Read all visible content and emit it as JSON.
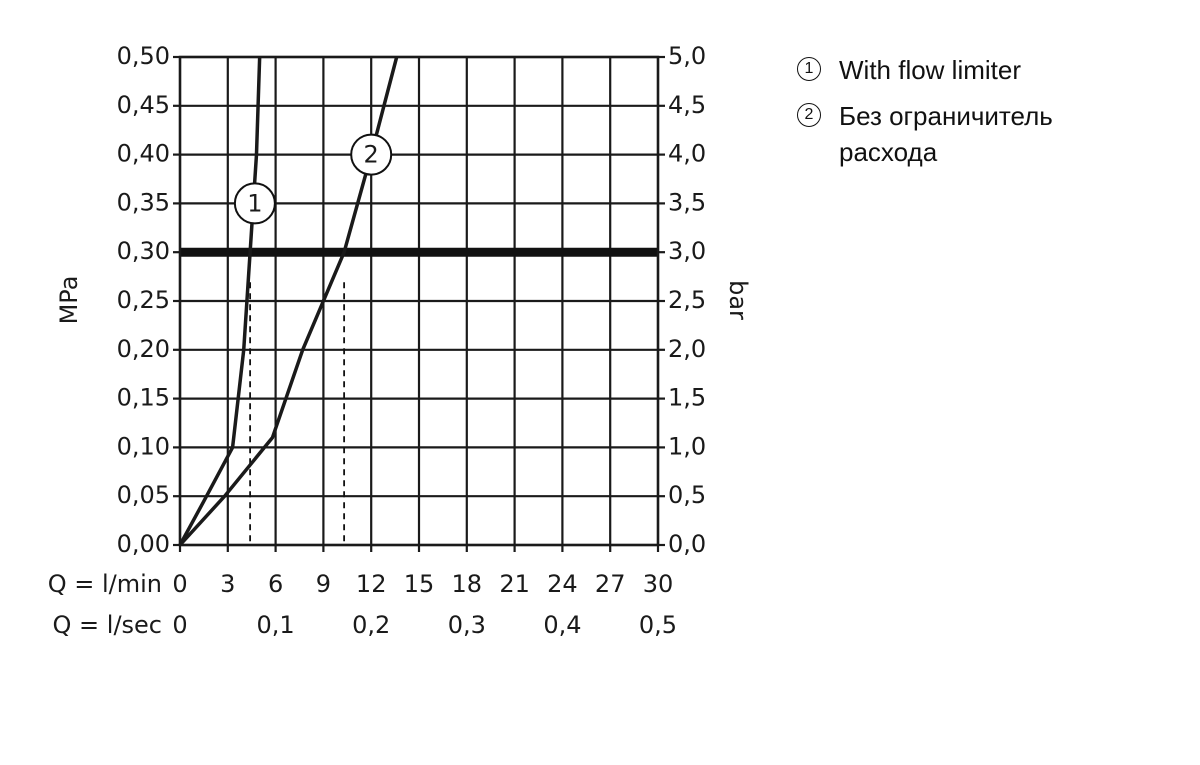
{
  "chart_data": {
    "type": "line",
    "ylabel": "MPa",
    "y2label": "bar",
    "xlabel": "Q = l/min",
    "x2label": "Q = l/sec",
    "xlim": [
      0,
      30
    ],
    "xticks": [
      0,
      3,
      6,
      9,
      12,
      15,
      18,
      21,
      24,
      27,
      30
    ],
    "x2lim": [
      0,
      0.5
    ],
    "x2ticks": [
      0,
      {
        "value": 0.1,
        "label": "0,1"
      },
      {
        "value": 0.2,
        "label": "0,2"
      },
      {
        "value": 0.3,
        "label": "0,3"
      },
      {
        "value": 0.4,
        "label": "0,4"
      },
      {
        "value": 0.5,
        "label": "0,5"
      }
    ],
    "ylim": [
      0,
      0.5
    ],
    "yticks": [
      {
        "value": 0,
        "label": "0,00"
      },
      {
        "value": 0.05,
        "label": "0,05"
      },
      {
        "value": 0.1,
        "label": "0,10"
      },
      {
        "value": 0.15,
        "label": "0,15"
      },
      {
        "value": 0.2,
        "label": "0,20"
      },
      {
        "value": 0.25,
        "label": "0,25"
      },
      {
        "value": 0.3,
        "label": "0,30"
      },
      {
        "value": 0.35,
        "label": "0,35"
      },
      {
        "value": 0.4,
        "label": "0,40"
      },
      {
        "value": 0.45,
        "label": "0,45"
      },
      {
        "value": 0.5,
        "label": "0,50"
      }
    ],
    "y2lim": [
      0,
      5
    ],
    "y2ticks": [
      {
        "value": 0,
        "label": "0,0"
      },
      {
        "value": 0.5,
        "label": "0,5"
      },
      {
        "value": 1,
        "label": "1,0"
      },
      {
        "value": 1.5,
        "label": "1,5"
      },
      {
        "value": 2,
        "label": "2,0"
      },
      {
        "value": 2.5,
        "label": "2,5"
      },
      {
        "value": 3,
        "label": "3,0"
      },
      {
        "value": 3.5,
        "label": "3,5"
      },
      {
        "value": 4,
        "label": "4,0"
      },
      {
        "value": 4.5,
        "label": "4,5"
      },
      {
        "value": 5,
        "label": "5,0"
      }
    ],
    "grid": true,
    "reference_y": 0.3,
    "dashed_x": [
      4.4,
      10.3
    ],
    "series": [
      {
        "name": "With flow limiter",
        "label": "1",
        "label_at": [
          4.7,
          0.35
        ],
        "color": "#1a1a1a",
        "x": [
          0,
          1.5,
          3.3,
          4.0,
          4.4,
          4.6,
          4.8,
          5.0
        ],
        "values": [
          0,
          0.045,
          0.1,
          0.2,
          0.3,
          0.35,
          0.4,
          0.5
        ]
      },
      {
        "name": "Без ограничитель расхода",
        "label": "2",
        "label_at": [
          12,
          0.4
        ],
        "color": "#1a1a1a",
        "x": [
          0,
          2.8,
          5.8,
          7.7,
          10.3,
          12.0,
          13.6
        ],
        "values": [
          0,
          0.05,
          0.11,
          0.2,
          0.3,
          0.4,
          0.5
        ]
      }
    ]
  }
}
